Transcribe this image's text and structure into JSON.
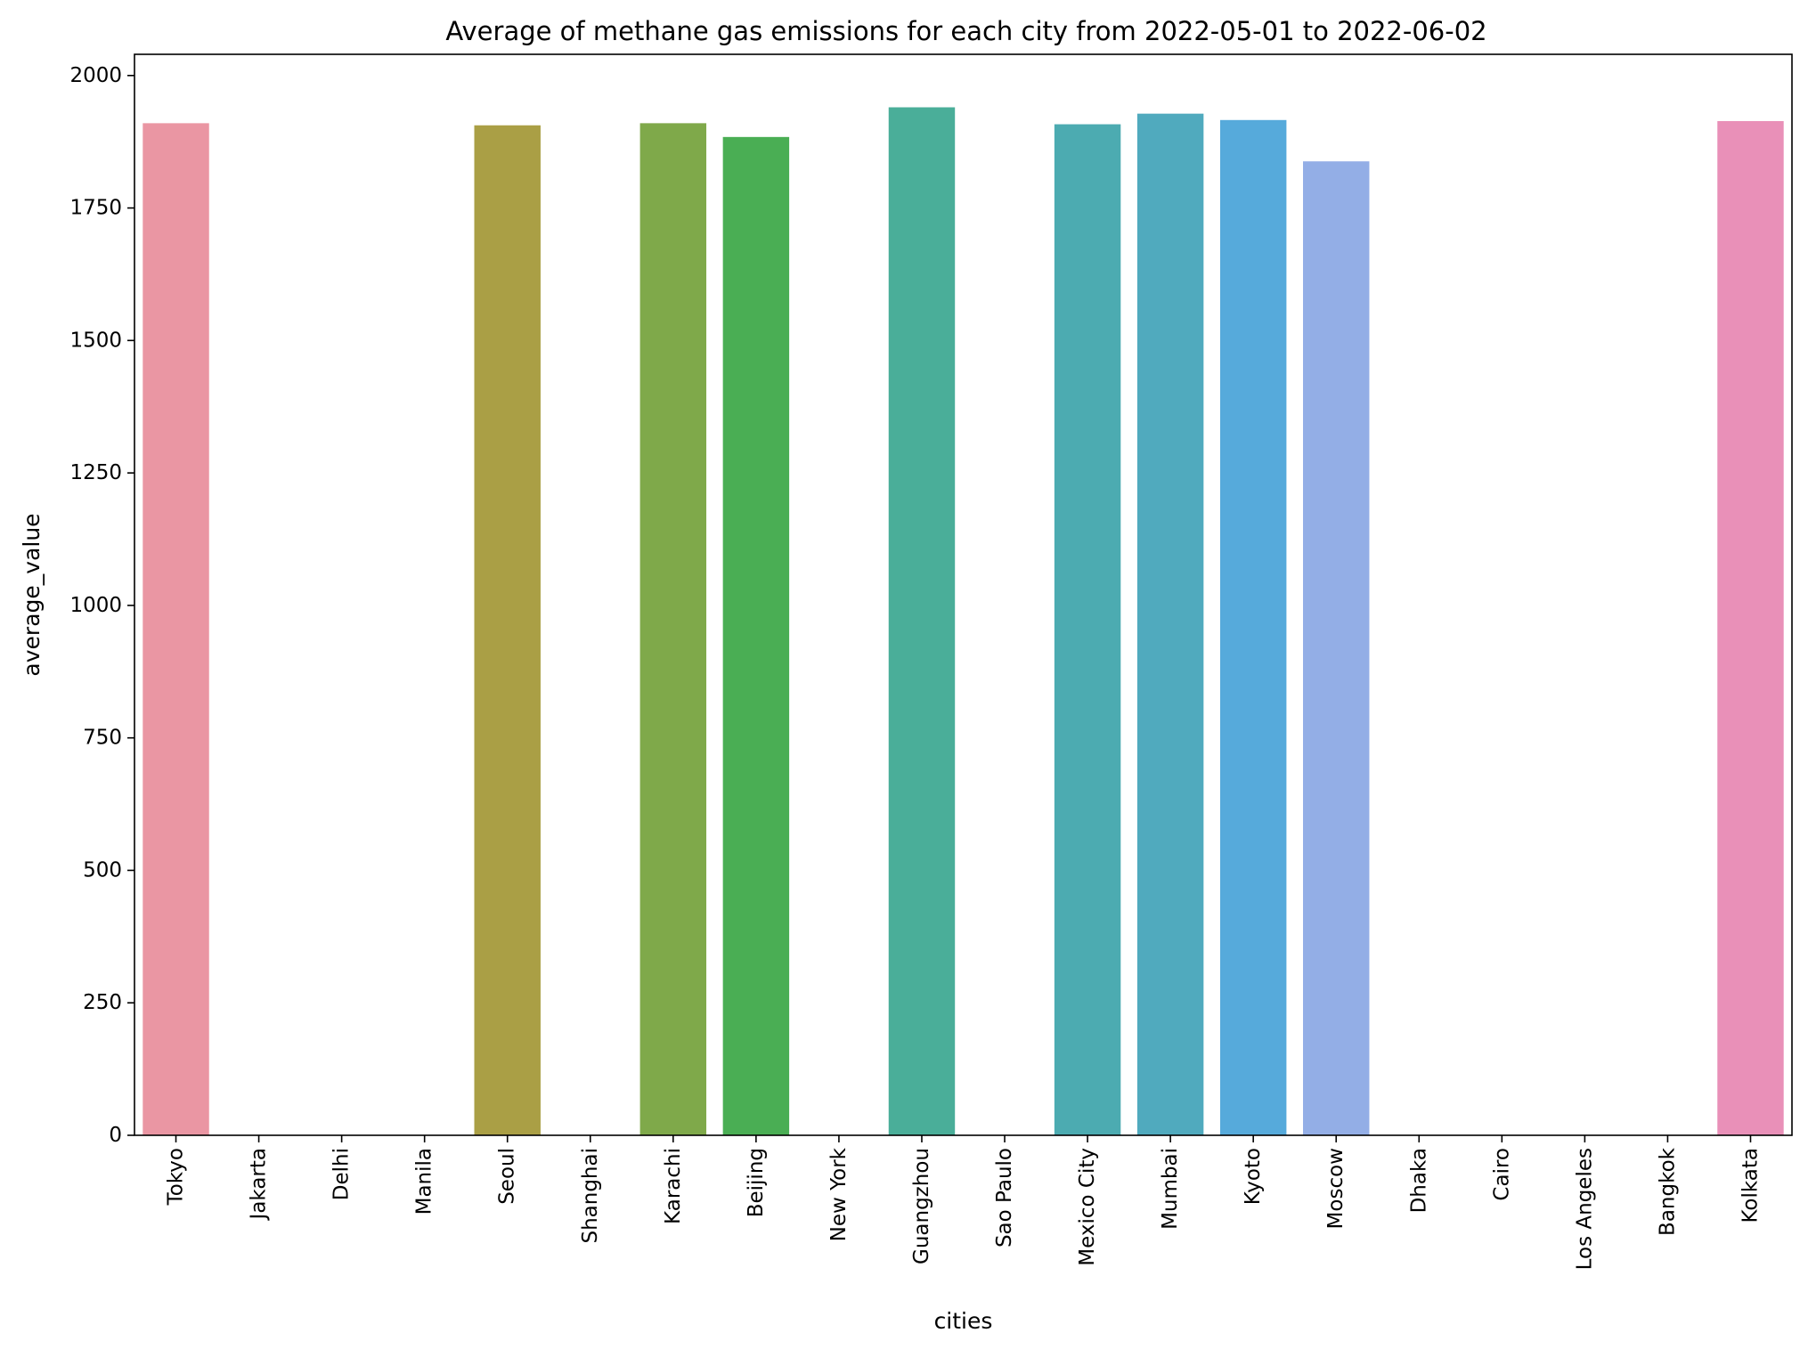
{
  "chart_data": {
    "type": "bar",
    "title": "Average of methane gas emissions for each city from 2022-05-01 to 2022-06-02",
    "xlabel": "cities",
    "ylabel": "average_value",
    "ylim": [
      0,
      2040
    ],
    "yticks": [
      0,
      250,
      500,
      750,
      1000,
      1250,
      1500,
      1750,
      2000
    ],
    "grid": false,
    "legend": "none",
    "categories": [
      "Tokyo",
      "Jakarta",
      "Delhi",
      "Manila",
      "Seoul",
      "Shanghai",
      "Karachi",
      "Beijing",
      "New York",
      "Guangzhou",
      "Sao Paulo",
      "Mexico City",
      "Mumbai",
      "Kyoto",
      "Moscow",
      "Dhaka",
      "Cairo",
      "Los Angeles",
      "Bangkok",
      "Kolkata"
    ],
    "values": [
      1910,
      0,
      0,
      0,
      1906,
      0,
      1910,
      1884,
      0,
      1940,
      0,
      1908,
      1928,
      1916,
      1838,
      0,
      0,
      0,
      0,
      1914
    ],
    "colors": [
      "#ea96a3",
      "#e2998a",
      "#d99d72",
      "#c8a460",
      "#aa9f45",
      "#95a447",
      "#7fa94a",
      "#4aae54",
      "#4aad89",
      "#4aae99",
      "#4aab9f",
      "#4cabb1",
      "#50aabe",
      "#56aadb",
      "#93aee6",
      "#b59fe6",
      "#d09ce5",
      "#e58fde",
      "#e88fcd",
      "#e990b8"
    ]
  }
}
